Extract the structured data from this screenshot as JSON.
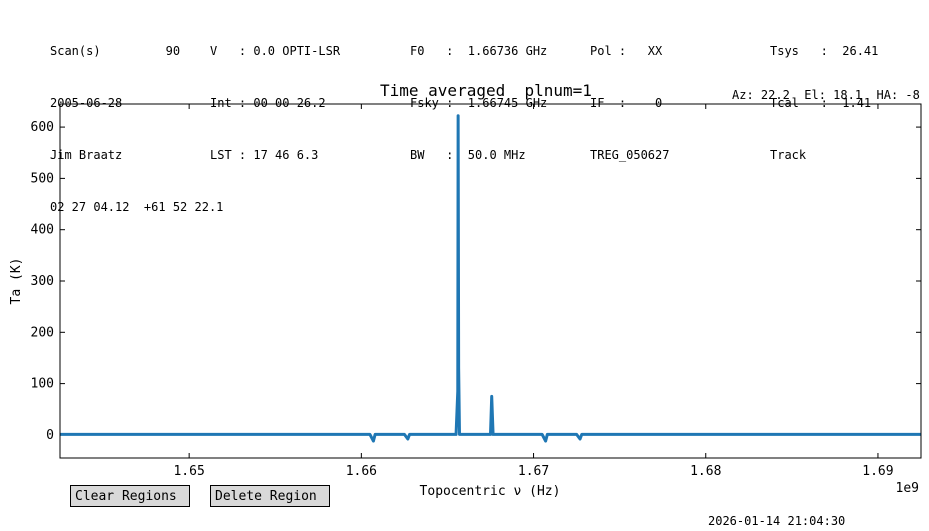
{
  "header": {
    "col1": [
      "Scan(s)         90",
      "2005-06-28",
      "Jim Braatz",
      "02 27 04.12  +61 52 22.1"
    ],
    "col2": [
      "V   : 0.0 OPTI-LSR",
      "Int : 00 00 26.2",
      "LST : 17 46 6.3"
    ],
    "col3": [
      "F0   :  1.66736 GHz",
      "Fsky :  1.66745 GHz",
      "BW   :  50.0 MHz"
    ],
    "col4": [
      "Pol :   XX",
      "IF  :    0",
      "TREG_050627"
    ],
    "col5": [
      "Tsys   :  26.41",
      "Tcal   :  1.41",
      "Track"
    ],
    "azel": "Az: 22.2  El: 18.1  HA: -8"
  },
  "buttons": {
    "clear": "Clear Regions",
    "delete": "Delete Region"
  },
  "timestamp": "2026-01-14 21:04:30",
  "chart_data": {
    "type": "line",
    "title": "Time averaged  plnum=1",
    "xlabel": "Topocentric ν (Hz)",
    "ylabel": "Ta (K)",
    "x_offset_label": "1e9",
    "xlim": [
      1.6425,
      1.6925
    ],
    "ylim": [
      -45,
      645
    ],
    "xticks": [
      1.65,
      1.66,
      1.67,
      1.68,
      1.69
    ],
    "xtick_labels": [
      "1.65",
      "1.66",
      "1.67",
      "1.68",
      "1.69"
    ],
    "yticks": [
      0,
      100,
      200,
      300,
      400,
      500,
      600
    ],
    "ytick_labels": [
      "0",
      "100",
      "200",
      "300",
      "400",
      "500",
      "600"
    ],
    "color": "#1f77b4",
    "series": [
      {
        "x": [
          1.6425,
          1.6605,
          1.6607,
          1.6608,
          1.661,
          1.6625,
          1.6627,
          1.6628,
          1.663,
          1.6655,
          1.6656,
          1.66562,
          1.66565,
          1.6657,
          1.6658,
          1.6675,
          1.66757,
          1.66765,
          1.6677,
          1.6705,
          1.6707,
          1.6708,
          1.671,
          1.6725,
          1.6727,
          1.6728,
          1.673,
          1.6925
        ],
        "y": [
          1,
          1,
          -12,
          1,
          1,
          1,
          -8,
          1,
          1,
          1,
          85,
          622,
          130,
          1,
          1,
          1,
          75,
          1,
          1,
          1,
          -12,
          1,
          1,
          1,
          -8,
          1,
          1,
          1
        ]
      }
    ]
  }
}
